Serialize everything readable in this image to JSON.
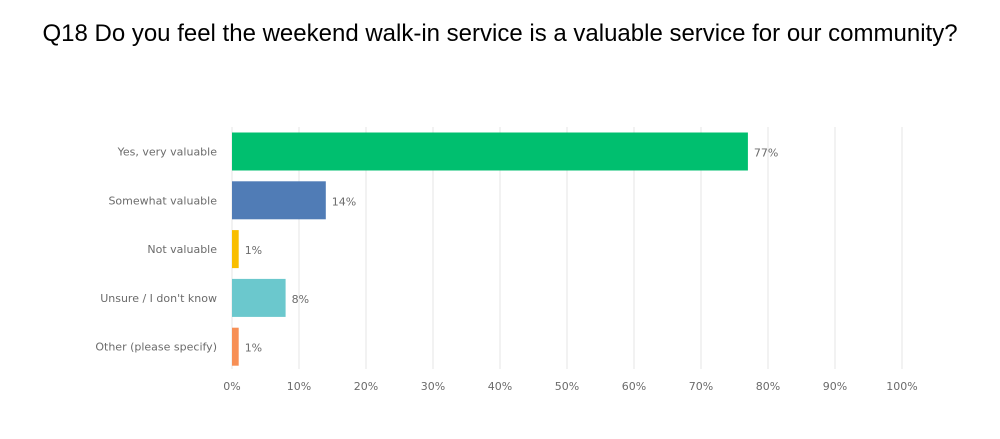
{
  "chart_data": {
    "type": "bar",
    "orientation": "horizontal",
    "title": "Q18 Do you feel the weekend walk-in service is a valuable service for our community?",
    "categories": [
      "Yes, very valuable",
      "Somewhat valuable",
      "Not valuable",
      "Unsure / I don't know",
      "Other (please specify)"
    ],
    "values": [
      77,
      14,
      1,
      8,
      1
    ],
    "value_labels": [
      "77%",
      "14%",
      "1%",
      "8%",
      "1%"
    ],
    "colors": [
      "#00bf6f",
      "#507cb6",
      "#f9be00",
      "#6bc8cd",
      "#f78f55"
    ],
    "xlim": [
      0,
      100
    ],
    "x_ticks": [
      0,
      10,
      20,
      30,
      40,
      50,
      60,
      70,
      80,
      90,
      100
    ],
    "x_tick_labels": [
      "0%",
      "10%",
      "20%",
      "30%",
      "40%",
      "50%",
      "60%",
      "70%",
      "80%",
      "90%",
      "100%"
    ],
    "xlabel": "",
    "ylabel": "",
    "grid": true
  }
}
